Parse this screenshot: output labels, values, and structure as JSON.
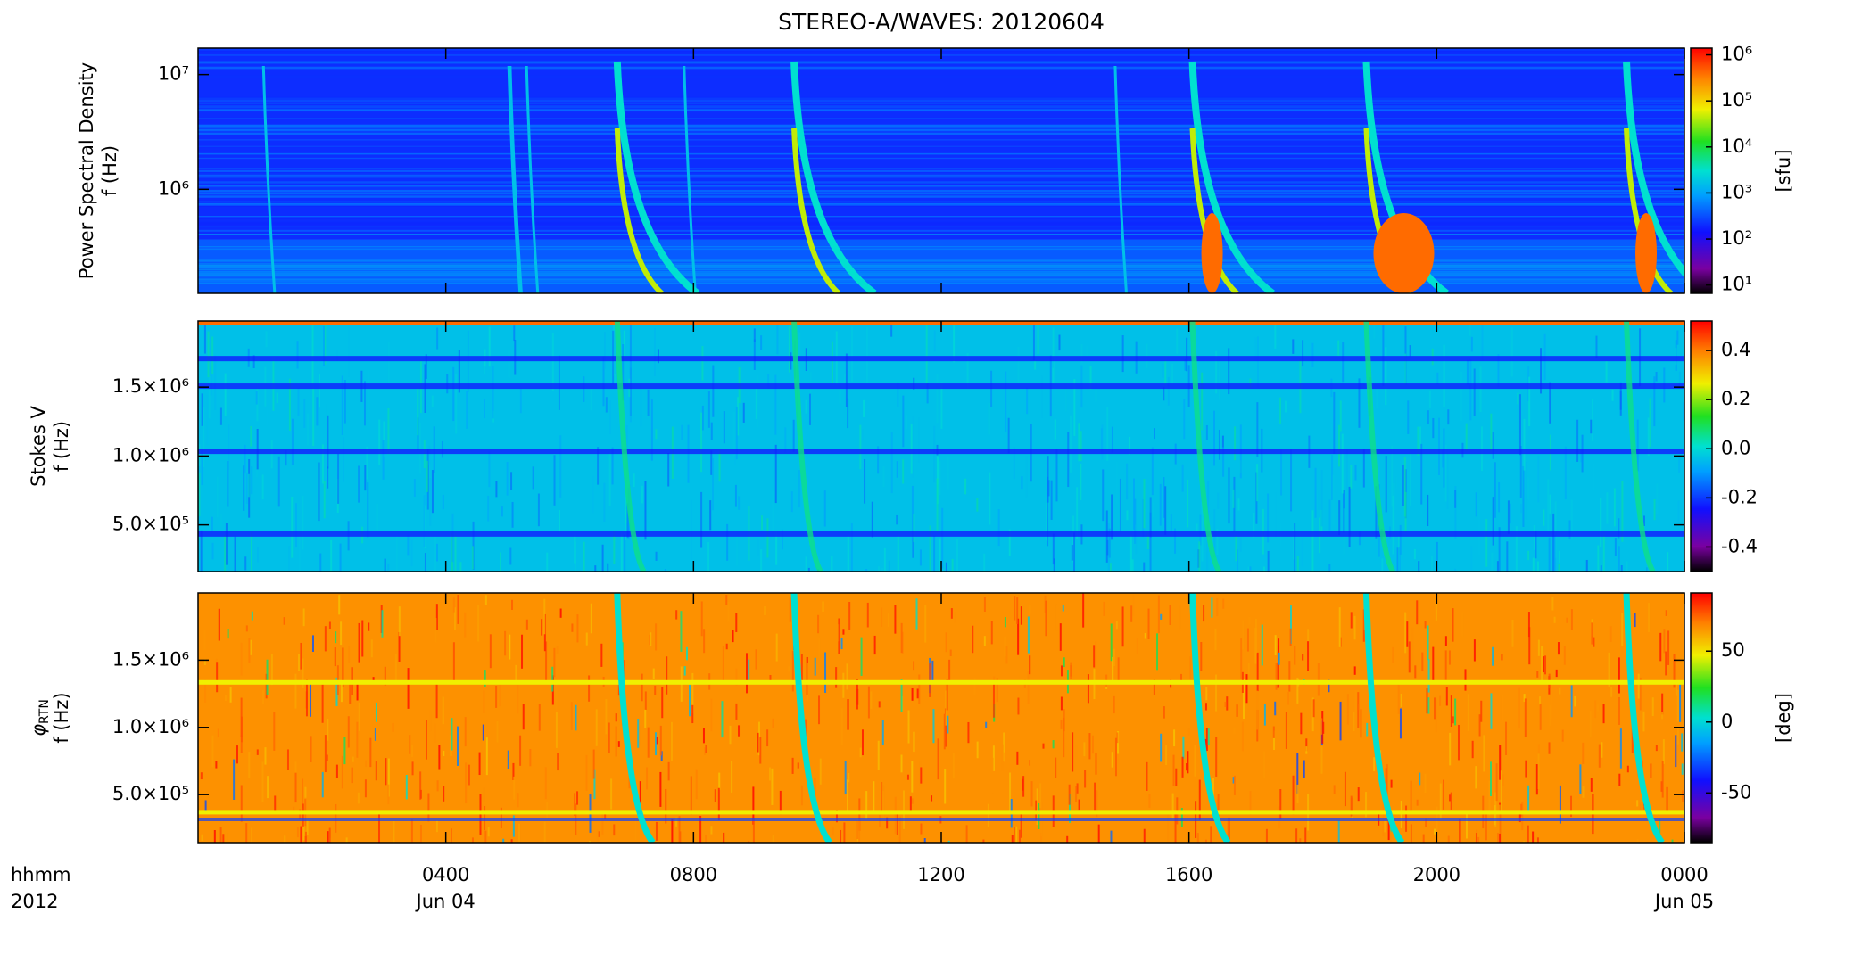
{
  "chart_data": [
    {
      "type": "heatmap",
      "title": "STEREO-A/WAVES: 20120604",
      "ylabel": [
        "Power Spectral Density",
        "f (Hz)"
      ],
      "ylog": true,
      "ylim": [
        124000,
        17000000
      ],
      "yticks": [
        {
          "value": 1000000,
          "label": "10⁶"
        },
        {
          "value": 10000000,
          "label": "10⁷"
        }
      ],
      "colorbar": {
        "log": true,
        "lim": [
          6.6,
          1400000
        ],
        "label": "[sfu]",
        "ticks": [
          {
            "value": 10,
            "label": "10¹"
          },
          {
            "value": 100,
            "label": "10²"
          },
          {
            "value": 1000,
            "label": "10³"
          },
          {
            "value": 10000,
            "label": "10⁴"
          },
          {
            "value": 100000,
            "label": "10⁵"
          },
          {
            "value": 1000000,
            "label": "10⁶"
          }
        ]
      },
      "colormap": "rainbow"
    },
    {
      "type": "heatmap",
      "ylabel": [
        "Stokes V",
        "f (Hz)"
      ],
      "ylog": false,
      "ylim": [
        161000,
        1980000
      ],
      "yticks": [
        {
          "value": 500000,
          "label": "5.0×10⁵"
        },
        {
          "value": 1000000,
          "label": "1.0×10⁶"
        },
        {
          "value": 1500000,
          "label": "1.5×10⁶"
        }
      ],
      "colorbar": {
        "log": false,
        "lim": [
          -0.5,
          0.52
        ],
        "ticks": [
          {
            "value": -0.4,
            "label": "-0.4"
          },
          {
            "value": -0.2,
            "label": "-0.2"
          },
          {
            "value": 0,
            "label": "0.0"
          },
          {
            "value": 0.2,
            "label": "0.2"
          },
          {
            "value": 0.4,
            "label": "0.4"
          }
        ]
      },
      "colormap": "rainbow"
    },
    {
      "type": "heatmap",
      "ylabel_symbol": "φ",
      "ylabel_subscript": "RTN",
      "ylabel": [
        "f (Hz)"
      ],
      "ylog": false,
      "ylim": [
        143000,
        2000000
      ],
      "yticks": [
        {
          "value": 500000,
          "label": "5.0×10⁵"
        },
        {
          "value": 1000000,
          "label": "1.0×10⁶"
        },
        {
          "value": 1500000,
          "label": "1.5×10⁶"
        }
      ],
      "colorbar": {
        "log": false,
        "lim": [
          -85,
          91
        ],
        "label": "[deg]",
        "ticks": [
          -50,
          0,
          50
        ]
      },
      "colormap": "rainbow",
      "xlim": [
        0,
        24
      ],
      "xticks": [
        {
          "value": 4,
          "label": "0400"
        },
        {
          "value": 8,
          "label": "0800"
        },
        {
          "value": 12,
          "label": "1200"
        },
        {
          "value": 16,
          "label": "1600"
        },
        {
          "value": 20,
          "label": "2000"
        },
        {
          "value": 24,
          "label": "0000"
        }
      ],
      "xdates": [
        {
          "value": 4,
          "label": "Jun 04"
        },
        {
          "value": 24,
          "label": "Jun 05"
        }
      ],
      "xcorner": [
        "hhmm",
        "2012"
      ]
    }
  ]
}
